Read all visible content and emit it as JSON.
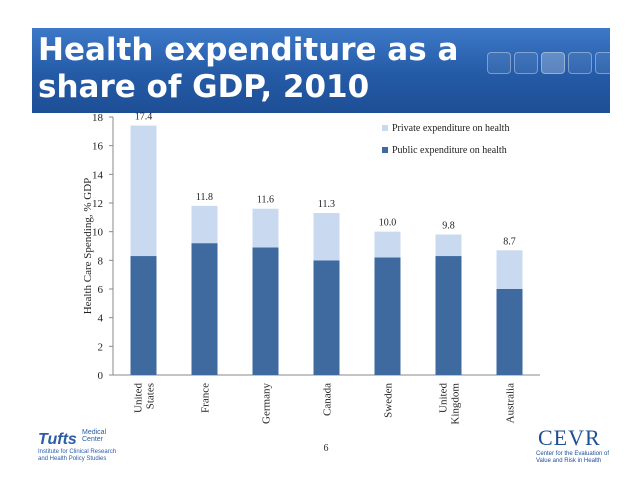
{
  "slide": {
    "title": "Health expenditure as a share of GDP, 2010",
    "page_number": "6"
  },
  "logos": {
    "tufts_name": "Tufts",
    "tufts_sub": "Medical Center",
    "tufts_institute": "Institute for Clinical Research and Health Policy Studies",
    "cevr_name": "CEVR",
    "cevr_sub": "Center for the Evaluation of Value and Risk in Health"
  },
  "colors": {
    "public": "#3f6aa0",
    "private": "#c9d9f0",
    "banner": "#245aa6"
  },
  "chart_data": {
    "type": "bar",
    "stacked": true,
    "categories": [
      "United States",
      "France",
      "Germany",
      "Canada",
      "Sweden",
      "United Kingdom",
      "Australia"
    ],
    "series": [
      {
        "name": "Public expenditure on health",
        "values": [
          8.3,
          9.2,
          8.9,
          8.0,
          8.2,
          8.3,
          6.0
        ]
      },
      {
        "name": "Private expenditure on health",
        "values": [
          9.1,
          2.6,
          2.7,
          3.3,
          1.8,
          1.5,
          2.7
        ]
      }
    ],
    "totals": [
      17.4,
      11.8,
      11.6,
      11.3,
      10.0,
      9.8,
      8.7
    ],
    "total_labels": [
      "17.4",
      "11.8",
      "11.6",
      "11.3",
      "10.0",
      "9.8",
      "8.7"
    ],
    "ylabel": "Health Care Spending, % GDP",
    "ylim": [
      0,
      18
    ],
    "yticks": [
      0,
      2,
      4,
      6,
      8,
      10,
      12,
      14,
      16,
      18
    ],
    "legend_position": "top-right",
    "grid": false
  }
}
